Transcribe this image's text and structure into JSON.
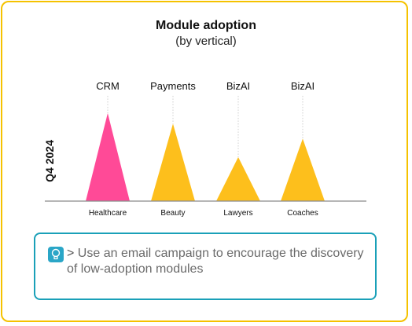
{
  "chart_data": {
    "type": "area",
    "title": "Module adoption",
    "subtitle": "(by vertical)",
    "ylabel": "Q4 2024",
    "categories": [
      "Healthcare",
      "Beauty",
      "Lawyers",
      "Coaches"
    ],
    "modules": [
      "CRM",
      "Payments",
      "BizAI",
      "BizAI"
    ],
    "values": [
      100,
      88,
      50,
      71
    ],
    "colors": [
      "#ff4a97",
      "#fdbf1c",
      "#fdbf1c",
      "#fdbf1c"
    ],
    "ylim": [
      0,
      100
    ],
    "grid": false
  },
  "callout": {
    "icon": "lightbulb-icon",
    "prefix": ">",
    "text": "Use an email campaign to encourage the discovery of low-adoption modules",
    "border_color": "#1aa0b8"
  }
}
